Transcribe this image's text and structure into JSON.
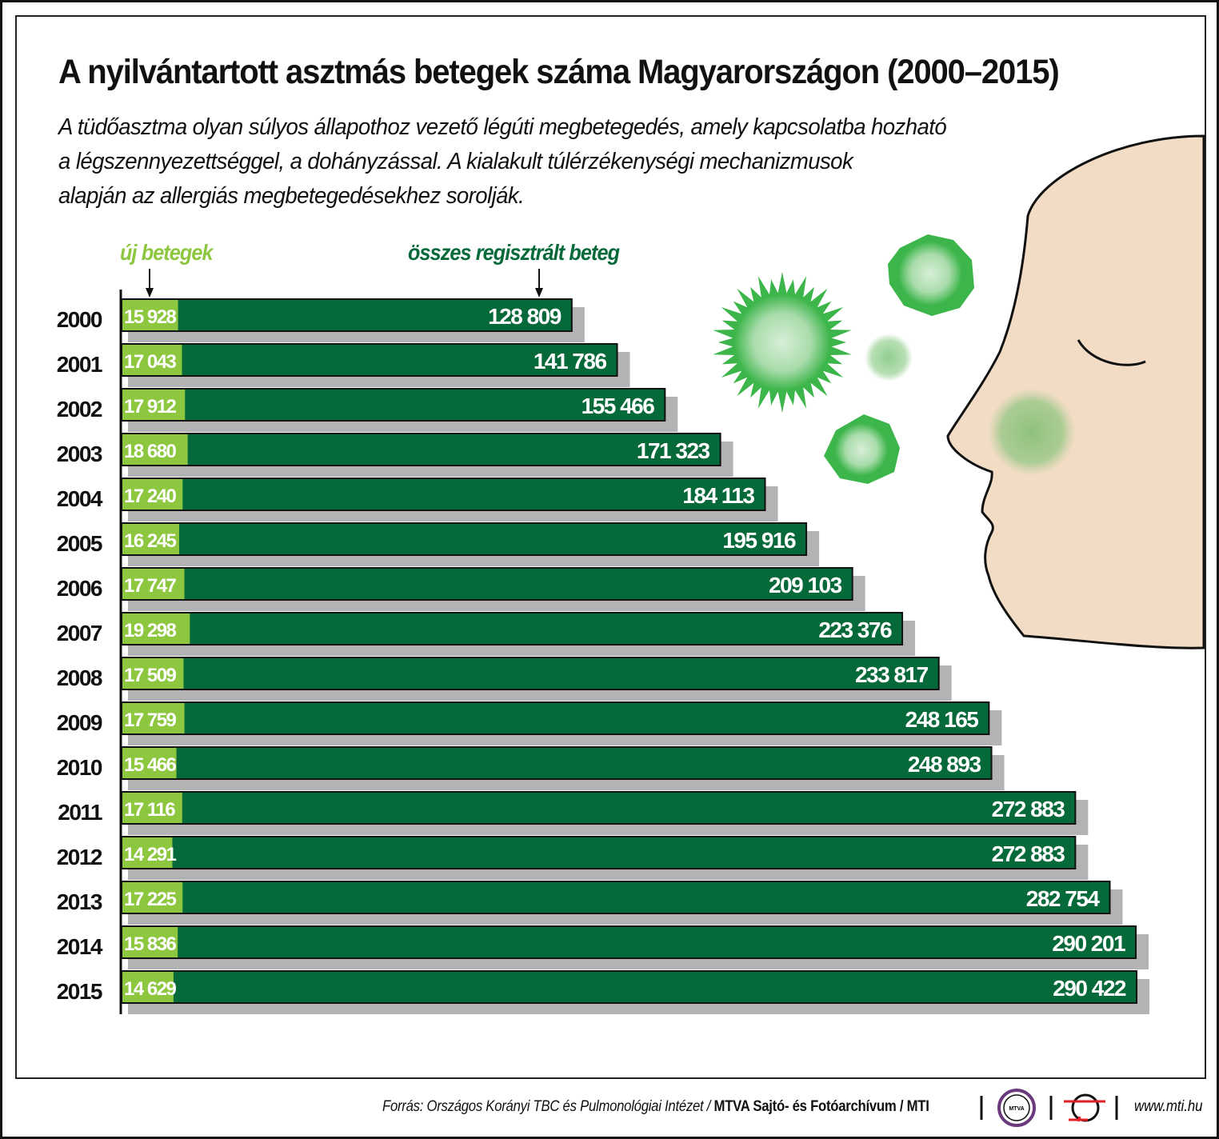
{
  "header": {
    "title": "A nyilvántartott asztmás betegek száma Magyarországon (2000–2015)",
    "subtitle_lines": [
      "A tüdőasztma olyan súlyos állapothoz vezető légúti megbetegedés, amely kapcsolatba hozható",
      "a légszennyezettséggel, a dohányzással. A kialakult túlérzékenységi mechanizmusok",
      "alapján az allergiás megbetegedésekhez sorolják."
    ]
  },
  "chart_data": {
    "type": "bar",
    "orientation": "horizontal",
    "categories": [
      "2000",
      "2001",
      "2002",
      "2003",
      "2004",
      "2005",
      "2006",
      "2007",
      "2008",
      "2009",
      "2010",
      "2011",
      "2012",
      "2013",
      "2014",
      "2015"
    ],
    "series": [
      {
        "name": "új betegek",
        "color": "#8dc63f",
        "values": [
          15928,
          17043,
          17912,
          18680,
          17240,
          16245,
          17747,
          19298,
          17509,
          17759,
          15466,
          17116,
          14291,
          17225,
          15836,
          14629
        ],
        "labels": [
          "15 928",
          "17 043",
          "17 912",
          "18 680",
          "17 240",
          "16 245",
          "17 747",
          "19 298",
          "17 509",
          "17 759",
          "15 466",
          "17 116",
          "14 291",
          "17 225",
          "15 836",
          "14 629"
        ]
      },
      {
        "name": "összes regisztrált beteg",
        "color": "#05693a",
        "values": [
          128809,
          141786,
          155466,
          171323,
          184113,
          195916,
          209103,
          223376,
          233817,
          248165,
          248893,
          272883,
          272883,
          282754,
          290201,
          290422
        ],
        "labels": [
          "128 809",
          "141 786",
          "155 466",
          "171 323",
          "184 113",
          "195 916",
          "209 103",
          "223 376",
          "233 817",
          "248 165",
          "248 893",
          "272 883",
          "272 883",
          "282 754",
          "290 201",
          "290 422"
        ]
      }
    ],
    "overlap": true,
    "legend": "top-left, arrows pointing to bars"
  },
  "footer": {
    "source_prefix": "Forrás: Országos Korányi TBC és Pulmonológiai Intézet / ",
    "source_bold": "MTVA Sajtó- és Fotóarchívum / MTI",
    "logo_mtva": "MTVA",
    "url": "www.mti.hu"
  },
  "colors": {
    "light_green": "#8dc63f",
    "dark_green": "#05693a",
    "shadow": "#999999",
    "skin": "#f2dcc5",
    "germ": "#3cb54a"
  }
}
